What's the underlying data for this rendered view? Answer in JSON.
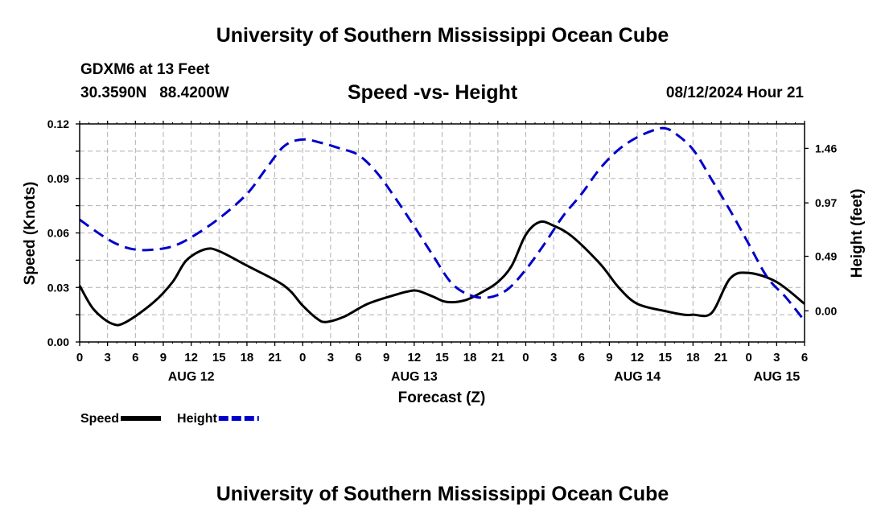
{
  "header": {
    "title": "University of Southern Mississippi Ocean Cube",
    "station": "GDXM6 at 13 Feet",
    "coords": "30.3590N   88.4200W",
    "subtitle": "Speed -vs- Height",
    "datetime": "08/12/2024 Hour 21"
  },
  "footer": {
    "title": "University of Southern Mississippi Ocean Cube"
  },
  "chart_data": {
    "type": "line",
    "title": "Speed -vs- Height",
    "xlabel": "Forecast (Z)",
    "ylabel": "Speed (Knots)",
    "y2label": "Height (feet)",
    "x_range_hours": [
      0,
      78
    ],
    "ylim": [
      0,
      0.12
    ],
    "y2lim": [
      -0.28,
      1.68
    ],
    "x_tick_labels": [
      "0",
      "3",
      "6",
      "9",
      "12",
      "15",
      "18",
      "21",
      "0",
      "3",
      "6",
      "9",
      "12",
      "15",
      "18",
      "21",
      "0",
      "3",
      "6",
      "9",
      "12",
      "15",
      "18",
      "21",
      "0",
      "3",
      "6"
    ],
    "date_labels": [
      {
        "label": "AUG 12",
        "hour": 12
      },
      {
        "label": "AUG 13",
        "hour": 36
      },
      {
        "label": "AUG 14",
        "hour": 60
      },
      {
        "label": "AUG 15",
        "hour": 75
      }
    ],
    "y_ticks": [
      0.0,
      0.03,
      0.06,
      0.09,
      0.12
    ],
    "y_tick_labels": [
      "0.00",
      "0.03",
      "0.06",
      "0.09",
      "0.12"
    ],
    "y2_ticks": [
      0.0,
      0.49,
      0.97,
      1.46
    ],
    "y2_tick_labels": [
      "0.00",
      "0.49",
      "0.97",
      "1.46"
    ],
    "legend": {
      "position": "bottom-left",
      "entries": [
        "Speed",
        "Height"
      ]
    },
    "grid": true,
    "series": [
      {
        "name": "Speed",
        "axis": "left",
        "color": "#000000",
        "style": "solid",
        "x": [
          0,
          1.5,
          3.5,
          5,
          8,
          10,
          11.5,
          13.5,
          15,
          18,
          22,
          24,
          25.5,
          26.5,
          28.5,
          31,
          34,
          35.5,
          36.5,
          38,
          39.5,
          41.5,
          43.5,
          45,
          46.5,
          48,
          49.5,
          51,
          53,
          56,
          58,
          60,
          63,
          65,
          66,
          68,
          70,
          72,
          75,
          78
        ],
        "values": [
          0.031,
          0.018,
          0.01,
          0.011,
          0.022,
          0.033,
          0.045,
          0.051,
          0.05,
          0.042,
          0.031,
          0.02,
          0.013,
          0.011,
          0.014,
          0.021,
          0.026,
          0.028,
          0.028,
          0.025,
          0.022,
          0.023,
          0.028,
          0.033,
          0.042,
          0.059,
          0.066,
          0.064,
          0.058,
          0.043,
          0.03,
          0.021,
          0.017,
          0.015,
          0.015,
          0.016,
          0.035,
          0.038,
          0.033,
          0.021
        ]
      },
      {
        "name": "Height",
        "axis": "right",
        "color": "#0000cc",
        "style": "dashed",
        "x": [
          0,
          2,
          4,
          6,
          8,
          10,
          12,
          15,
          18,
          20,
          22,
          24,
          26,
          28,
          30,
          32,
          34,
          36,
          38,
          40,
          42,
          44,
          46,
          48,
          50,
          52,
          54,
          56,
          58,
          60,
          62,
          63,
          64,
          66,
          68,
          70,
          72,
          74,
          76,
          78
        ],
        "values": [
          0.82,
          0.7,
          0.6,
          0.55,
          0.55,
          0.58,
          0.66,
          0.83,
          1.05,
          1.27,
          1.48,
          1.54,
          1.51,
          1.46,
          1.4,
          1.24,
          1.01,
          0.76,
          0.5,
          0.25,
          0.14,
          0.12,
          0.19,
          0.37,
          0.6,
          0.85,
          1.05,
          1.28,
          1.45,
          1.56,
          1.63,
          1.64,
          1.6,
          1.45,
          1.18,
          0.9,
          0.6,
          0.3,
          0.12,
          -0.09
        ]
      }
    ]
  }
}
